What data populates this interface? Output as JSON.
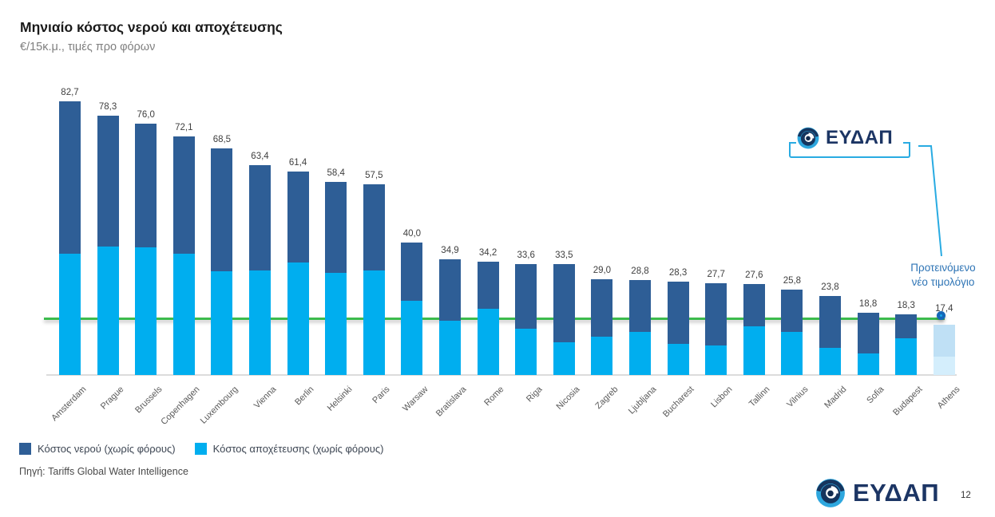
{
  "slide": {
    "title": "Μηνιαίο κόστος νερού και αποχέτευσης",
    "subtitle": "€/15κ.μ., τιμές προ φόρων",
    "source": "Πηγή: Tariffs Global Water Intelligence",
    "page_number": "12",
    "logo_text": "ΕΥΔΑΠ",
    "annotation": "Προτεινόμενο\nνέο τιμολόγιο"
  },
  "legend": [
    {
      "label": "Κόστος νερού (χωρίς φόρους)",
      "color": "#2e5e96"
    },
    {
      "label": "Κόστος αποχέτευσης (χωρίς φόρους)",
      "color": "#00aeef"
    }
  ],
  "chart_data": {
    "type": "stacked-bar",
    "title": "Μηνιαίο κόστος νερού και αποχέτευσης",
    "unit": "€/15κ.μ., τιμές προ φόρων",
    "categories": [
      "Amsterdam",
      "Prague",
      "Brussels",
      "Copenhagen",
      "Luxembourg",
      "Vienna",
      "Berlin",
      "Helsinki",
      "Paris",
      "Warsaw",
      "Bratislava",
      "Rome",
      "Riga",
      "Nicosia",
      "Zagreb",
      "Ljubljana",
      "Bucharest",
      "Lisbon",
      "Tallinn",
      "Vilnius",
      "Madrid",
      "Sofia",
      "Budapest",
      "Athens"
    ],
    "totals": [
      82.7,
      78.3,
      76.0,
      72.1,
      68.5,
      63.4,
      61.4,
      58.4,
      57.5,
      40.0,
      34.9,
      34.2,
      33.6,
      33.5,
      29.0,
      28.8,
      28.3,
      27.7,
      27.6,
      25.8,
      23.8,
      18.8,
      18.3,
      17.4
    ],
    "total_labels": [
      "82,7",
      "78,3",
      "76,0",
      "72,1",
      "68,5",
      "63,4",
      "61,4",
      "58,4",
      "57,5",
      "40,0",
      "34,9",
      "34,2",
      "33,6",
      "33,5",
      "29,0",
      "28,8",
      "28,3",
      "27,7",
      "27,6",
      "25,8",
      "23,8",
      "18,8",
      "18,3",
      "17,4"
    ],
    "series": [
      {
        "name": "Κόστος νερού (χωρίς φόρους)",
        "color": "#2e5e96",
        "values": [
          46.1,
          39.6,
          37.4,
          35.4,
          37.2,
          31.7,
          27.5,
          27.5,
          25.8,
          17.5,
          18.4,
          14.1,
          19.5,
          23.5,
          17.4,
          15.9,
          18.8,
          18.9,
          13.0,
          12.9,
          15.5,
          12.4,
          7.2,
          null
        ]
      },
      {
        "name": "Κόστος αποχέτευσης (χωρίς φόρους)",
        "color": "#00aeef",
        "values": [
          36.6,
          38.7,
          38.6,
          36.7,
          31.3,
          31.7,
          33.9,
          30.9,
          31.7,
          22.5,
          16.5,
          20.1,
          14.1,
          10.0,
          11.6,
          12.9,
          9.5,
          8.8,
          14.6,
          12.9,
          8.3,
          6.4,
          11.1,
          null
        ]
      }
    ],
    "highlight": {
      "city": "Athens",
      "label": "17,4",
      "marker_value": 17.4,
      "annotation": "Προτεινόμενο νέο τιμολόγιο",
      "segments_top_to_bottom": [
        {
          "value": 9.6,
          "color": "#bfe0f5"
        },
        {
          "value": 5.6,
          "color": "#d4eefc"
        }
      ]
    },
    "reference_line": {
      "value": 17.4,
      "color": "#3cbb4d"
    },
    "value_axis": {
      "min": 0,
      "max": 89,
      "visible": false
    },
    "grid": false,
    "legend_position": "bottom-left"
  }
}
